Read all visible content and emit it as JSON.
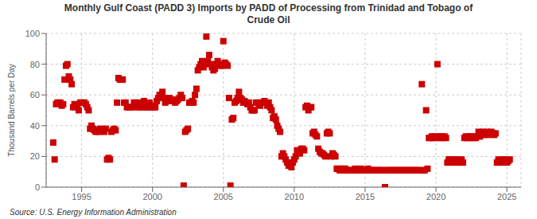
{
  "chart_data": {
    "type": "scatter",
    "title": "Monthly Gulf Coast (PADD 3) Imports by PADD of Processing from Trinidad and Tobago of\nCrude Oil",
    "ylabel": "Thousand Barrels per Day",
    "annotations": [
      "Source: U.S. Energy Information Administration"
    ],
    "xlim": [
      1992.5,
      2026
    ],
    "ylim": [
      0,
      100
    ],
    "xticks": [
      1995,
      2000,
      2005,
      2010,
      2015,
      2020,
      2025
    ],
    "yticks": [
      0,
      20,
      40,
      60,
      80,
      100
    ],
    "grid": true,
    "color": "#cc0000",
    "marker": "square",
    "x": [
      1993.0,
      1993.1,
      1993.2,
      1993.3,
      1993.4,
      1993.5,
      1993.6,
      1993.7,
      1993.8,
      1993.9,
      1994.0,
      1994.1,
      1994.2,
      1994.3,
      1994.4,
      1994.5,
      1994.6,
      1994.7,
      1994.8,
      1994.9,
      1995.0,
      1995.1,
      1995.2,
      1995.3,
      1995.4,
      1995.5,
      1995.6,
      1995.7,
      1995.8,
      1995.9,
      1996.0,
      1996.1,
      1996.2,
      1996.3,
      1996.4,
      1996.5,
      1996.6,
      1996.7,
      1996.8,
      1996.9,
      1997.0,
      1997.1,
      1997.2,
      1997.3,
      1997.4,
      1997.5,
      1997.6,
      1997.7,
      1997.8,
      1997.9,
      1998.0,
      1998.1,
      1998.2,
      1998.3,
      1998.4,
      1998.5,
      1998.6,
      1998.7,
      1998.8,
      1998.9,
      1999.0,
      1999.1,
      1999.2,
      1999.3,
      1999.4,
      1999.5,
      1999.6,
      1999.7,
      1999.8,
      1999.9,
      2000.0,
      2000.1,
      2000.2,
      2000.3,
      2000.4,
      2000.5,
      2000.6,
      2000.7,
      2000.8,
      2000.9,
      2001.0,
      2001.1,
      2001.2,
      2001.3,
      2001.4,
      2001.5,
      2001.6,
      2001.7,
      2001.8,
      2001.9,
      2002.0,
      2002.1,
      2002.2,
      2002.3,
      2002.4,
      2002.5,
      2002.6,
      2002.7,
      2002.8,
      2002.9,
      2003.0,
      2003.1,
      2003.2,
      2003.3,
      2003.4,
      2003.5,
      2003.6,
      2003.7,
      2003.8,
      2003.9,
      2004.0,
      2004.1,
      2004.2,
      2004.3,
      2004.4,
      2004.5,
      2004.6,
      2004.7,
      2004.8,
      2004.9,
      2005.0,
      2005.1,
      2005.2,
      2005.3,
      2005.4,
      2005.5,
      2005.6,
      2005.7,
      2005.8,
      2005.9,
      2006.0,
      2006.1,
      2006.2,
      2006.3,
      2006.4,
      2006.5,
      2006.6,
      2006.7,
      2006.8,
      2006.9,
      2007.0,
      2007.1,
      2007.2,
      2007.3,
      2007.4,
      2007.5,
      2007.6,
      2007.7,
      2007.8,
      2007.9,
      2008.0,
      2008.1,
      2008.2,
      2008.3,
      2008.4,
      2008.5,
      2008.6,
      2008.7,
      2008.8,
      2008.9,
      2009.0,
      2009.1,
      2009.2,
      2009.3,
      2009.4,
      2009.5,
      2009.6,
      2009.7,
      2009.8,
      2009.9,
      2010.0,
      2010.1,
      2010.2,
      2010.3,
      2010.4,
      2010.5,
      2010.6,
      2010.7,
      2010.8,
      2010.9,
      2011.0,
      2011.1,
      2011.2,
      2011.3,
      2011.4,
      2011.5,
      2011.6,
      2011.7,
      2011.8,
      2011.9,
      2012.0,
      2012.1,
      2012.2,
      2012.3,
      2012.4,
      2012.5,
      2012.6,
      2012.7,
      2012.8,
      2012.9,
      2013.0,
      2013.1,
      2013.2,
      2013.3,
      2013.4,
      2013.5,
      2013.6,
      2013.7,
      2013.8,
      2013.9,
      2014.0,
      2014.1,
      2014.2,
      2014.3,
      2014.4,
      2014.5,
      2014.6,
      2014.7,
      2014.8,
      2014.9,
      2015.0,
      2015.1,
      2015.2,
      2015.3,
      2015.4,
      2015.5,
      2015.6,
      2015.7,
      2015.8,
      2015.9,
      2016.0,
      2016.1,
      2016.2,
      2016.3,
      2016.4,
      2016.5,
      2016.6,
      2016.7,
      2016.8,
      2016.9,
      2017.0,
      2017.1,
      2017.2,
      2017.3,
      2017.4,
      2017.5,
      2017.6,
      2017.7,
      2017.8,
      2017.9,
      2018.0,
      2018.1,
      2018.2,
      2018.3,
      2018.4,
      2018.5,
      2018.6,
      2018.7,
      2018.8,
      2018.9,
      2019.0,
      2019.1,
      2019.2,
      2019.3,
      2019.4,
      2019.5,
      2019.6,
      2019.7,
      2019.8,
      2019.9,
      2020.0,
      2020.1,
      2020.2,
      2020.3,
      2020.4,
      2020.5,
      2020.6,
      2020.7,
      2020.8,
      2020.9,
      2021.0,
      2021.1,
      2021.2,
      2021.3,
      2021.4,
      2021.5,
      2021.6,
      2021.7,
      2021.8,
      2021.9,
      2022.0,
      2022.1,
      2022.2,
      2022.3,
      2022.4,
      2022.5,
      2022.6,
      2022.7,
      2022.8,
      2022.9,
      2023.0,
      2023.1,
      2023.2,
      2023.3,
      2023.4,
      2023.5,
      2023.6,
      2023.7,
      2023.8,
      2023.9,
      2024.0,
      2024.1,
      2024.2,
      2024.3,
      2024.4,
      2024.5,
      2024.6,
      2024.7,
      2024.8,
      2024.9,
      2025.0,
      2025.1,
      2025.2
    ],
    "values": [
      29,
      18,
      54,
      55,
      55,
      55,
      53,
      54,
      70,
      79,
      80,
      72,
      70,
      67,
      52,
      54,
      52,
      53,
      50,
      55,
      55,
      55,
      55,
      54,
      52,
      50,
      38,
      40,
      38,
      37,
      36,
      37,
      36,
      38,
      37,
      37,
      36,
      38,
      18,
      19,
      18,
      36,
      37,
      38,
      37,
      55,
      71,
      70,
      70,
      70,
      55,
      55,
      52,
      52,
      52,
      52,
      52,
      55,
      55,
      55,
      52,
      52,
      52,
      55,
      56,
      52,
      52,
      52,
      55,
      53,
      52,
      52,
      52,
      56,
      58,
      60,
      60,
      62,
      58,
      55,
      56,
      56,
      58,
      57,
      57,
      56,
      55,
      56,
      57,
      58,
      60,
      58,
      1,
      36,
      37,
      38,
      55,
      55,
      56,
      55,
      60,
      64,
      76,
      78,
      80,
      82,
      78,
      80,
      98,
      82,
      86,
      80,
      78,
      76,
      77,
      80,
      82,
      80,
      79,
      79,
      95,
      81,
      80,
      79,
      58,
      1,
      44,
      45,
      55,
      56,
      58,
      62,
      58,
      57,
      55,
      56,
      55,
      54,
      55,
      52,
      50,
      50,
      50,
      55,
      55,
      54,
      53,
      55,
      55,
      56,
      55,
      53,
      55,
      52,
      50,
      45,
      46,
      44,
      40,
      38,
      36,
      20,
      22,
      20,
      18,
      16,
      14,
      15,
      13,
      16,
      18,
      20,
      24,
      22,
      22,
      25,
      25,
      24,
      52,
      53,
      50,
      52,
      52,
      35,
      36,
      34,
      33,
      25,
      23,
      22,
      22,
      21,
      20,
      35,
      36,
      35,
      20,
      22,
      21,
      20,
      12,
      12,
      11,
      11,
      12,
      11,
      12,
      11,
      11,
      11,
      11,
      11,
      11,
      12,
      11,
      11,
      11,
      12,
      11,
      11,
      11,
      11,
      12,
      11,
      11,
      11,
      11,
      11,
      11,
      11,
      11,
      11,
      11,
      11,
      0,
      11,
      11,
      11,
      11,
      11,
      11,
      11,
      11,
      11,
      11,
      11,
      11,
      11,
      11,
      11,
      11,
      11,
      11,
      11,
      11,
      11,
      11,
      11,
      11,
      11,
      67,
      11,
      11,
      50,
      12,
      32,
      32,
      33,
      32,
      33,
      32,
      80,
      33,
      32,
      33,
      32,
      33,
      32,
      16,
      18,
      18,
      17,
      16,
      18,
      17,
      18,
      16,
      17,
      18,
      16,
      32,
      33,
      32,
      33,
      32,
      33,
      32,
      33,
      32,
      33,
      36,
      33,
      35,
      36,
      34,
      35,
      36,
      34,
      35,
      36,
      35,
      34,
      35,
      16,
      18,
      17,
      16,
      18,
      17,
      18,
      16,
      17,
      18
    ]
  }
}
